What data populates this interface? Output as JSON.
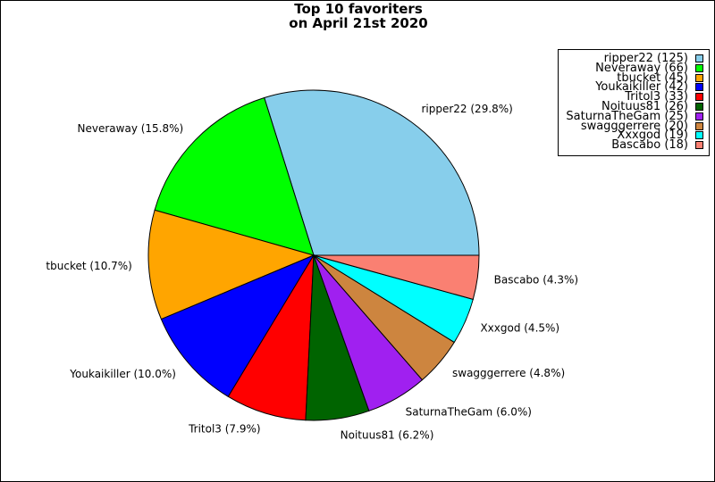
{
  "chart_data": {
    "type": "pie",
    "title": "Top 10 favoriters\non April 21st 2020",
    "title_lines": [
      "Top 10 favoriters",
      "on April 21st 2020"
    ],
    "start_angle_deg": 0,
    "direction": "counterclockwise",
    "legend_placement": "top-right",
    "slices": [
      {
        "name": "ripper22",
        "value": 125,
        "percent_label": "ripper22 (29.8%)",
        "legend_label": "ripper22 (125)",
        "color": "#87ceeb"
      },
      {
        "name": "Neveraway",
        "value": 66,
        "percent_label": "Neveraway (15.8%)",
        "legend_label": "Neveraway (66)",
        "color": "#00ff00"
      },
      {
        "name": "tbucket",
        "value": 45,
        "percent_label": "tbucket (10.7%)",
        "legend_label": "tbucket (45)",
        "color": "#ffa500"
      },
      {
        "name": "Youkaikiller",
        "value": 42,
        "percent_label": "Youkaikiller (10.0%)",
        "legend_label": "Youkaikiller (42)",
        "color": "#0000ff"
      },
      {
        "name": "Tritol3",
        "value": 33,
        "percent_label": "Tritol3 (7.9%)",
        "legend_label": "Tritol3 (33)",
        "color": "#ff0000"
      },
      {
        "name": "Noituus81",
        "value": 26,
        "percent_label": "Noituus81 (6.2%)",
        "legend_label": "Noituus81 (26)",
        "color": "#006400"
      },
      {
        "name": "SaturnaTheGam",
        "value": 25,
        "percent_label": "SaturnaTheGam (6.0%)",
        "legend_label": "SaturnaTheGam (25)",
        "color": "#a020f0"
      },
      {
        "name": "swagggerrere",
        "value": 20,
        "percent_label": "swagggerrere (4.8%)",
        "legend_label": "swagggerrere (20)",
        "color": "#cd853f"
      },
      {
        "name": "Xxxgod",
        "value": 19,
        "percent_label": "Xxxgod (4.5%)",
        "legend_label": "Xxxgod (19)",
        "color": "#00ffff"
      },
      {
        "name": "Bascabo",
        "value": 18,
        "percent_label": "Bascabo (4.3%)",
        "legend_label": "Bascabo (18)",
        "color": "#fa8072"
      }
    ]
  }
}
